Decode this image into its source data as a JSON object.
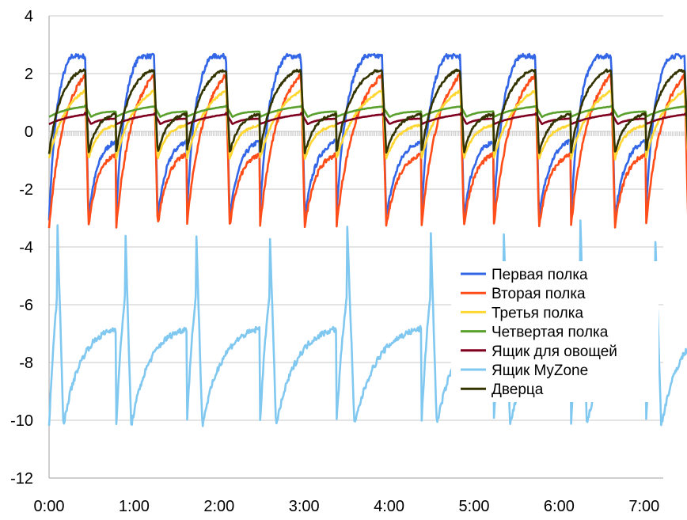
{
  "chart_data": {
    "type": "line",
    "title": "",
    "xlabel": "",
    "ylabel": "",
    "xlim_hours": [
      0,
      7.67
    ],
    "ylim": [
      -12,
      4
    ],
    "y_ticks": [
      "4",
      "2",
      "0",
      "-2",
      "-4",
      "-6",
      "-8",
      "-10",
      "-12"
    ],
    "x_ticks": [
      "0:00",
      "1:00",
      "2:00",
      "3:00",
      "4:00",
      "5:00",
      "6:00",
      "7:00"
    ],
    "grid": "horizontal",
    "legend_position": "bottom-right",
    "cycle_starts_hours": [
      0.0,
      0.79,
      1.62,
      2.48,
      3.38,
      4.38,
      5.23,
      6.14,
      7.02
    ],
    "series": [
      {
        "name": "Первая полка",
        "color": "#3366e6",
        "peak": 2.6,
        "trough": -3.0,
        "comp_end_hours": 0.43,
        "trough_hours": 0.47,
        "recovery_tau_hours": 0.09
      },
      {
        "name": "Вторая полка",
        "color": "#ff4d1a",
        "peak": 1.95,
        "trough": -3.3,
        "comp_end_hours": 0.43,
        "trough_hours": 0.47,
        "recovery_tau_hours": 0.17
      },
      {
        "name": "Третья полка",
        "color": "#ffd733",
        "peak": 1.5,
        "trough": -0.95,
        "comp_end_hours": 0.43,
        "trough_hours": 0.47,
        "recovery_tau_hours": 0.2
      },
      {
        "name": "Четвертая полка",
        "color": "#5aa02c",
        "peak": 0.9,
        "trough": 0.5,
        "comp_end_hours": 0.43,
        "trough_hours": 0.5,
        "recovery_tau_hours": 0.25
      },
      {
        "name": "Ящик для овощей",
        "color": "#800020",
        "peak": 0.65,
        "trough": 0.25,
        "comp_end_hours": 0.43,
        "trough_hours": 0.5,
        "recovery_tau_hours": 0.3
      },
      {
        "name": "Ящик MyZone",
        "color": "#80c8f0",
        "peak": -3.1,
        "trough": -10.2,
        "comp_end_hours": 0.1,
        "trough_hours": 0.17,
        "recovery_tau_hours": 0.12
      },
      {
        "name": "Дверца",
        "color": "#333300",
        "peak": 2.1,
        "trough": -0.75,
        "comp_end_hours": 0.43,
        "trough_hours": 0.47,
        "recovery_tau_hours": 0.14
      }
    ]
  }
}
